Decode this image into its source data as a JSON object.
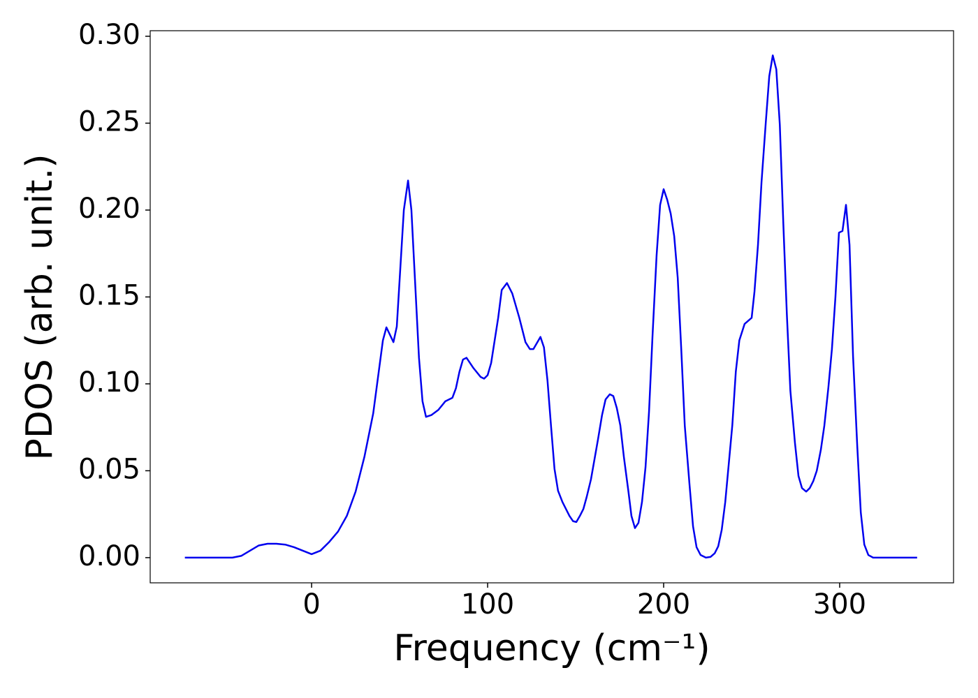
{
  "chart_data": {
    "type": "line",
    "xlabel": "Frequency (cm⁻¹)",
    "ylabel": "PDOS (arb. unit.)",
    "x": [
      -72,
      -45,
      -40,
      -35,
      -30,
      -25,
      -20,
      -15,
      -10,
      -5,
      0,
      5,
      10,
      15,
      20,
      25,
      30,
      35,
      40.5,
      42.5,
      46.5,
      48.4,
      52.4,
      54.8,
      56.7,
      61,
      63,
      65,
      68,
      72,
      76,
      80,
      82,
      84,
      86,
      88,
      92,
      96,
      98,
      100,
      102,
      106,
      108,
      111,
      114,
      118,
      121.5,
      124,
      126,
      130,
      132,
      134,
      136,
      138,
      140,
      142.5,
      146.5,
      148.5,
      150.4,
      152.4,
      154.4,
      156.3,
      158.7,
      162.7,
      165,
      167,
      169.4,
      171.4,
      173.4,
      175.4,
      177.4,
      180,
      181.7,
      183.7,
      185.7,
      187.7,
      189.7,
      191.7,
      193.7,
      196,
      198,
      200,
      202,
      204,
      206,
      208,
      210,
      212,
      214.7,
      216.7,
      218.7,
      221,
      224,
      226.6,
      229,
      231,
      233,
      235,
      237,
      239,
      241,
      243,
      246,
      250,
      251.6,
      253.6,
      255.6,
      258,
      260,
      262,
      264,
      266,
      268,
      270,
      272,
      274.6,
      276.6,
      278.6,
      281,
      283,
      285,
      287,
      289.3,
      291.3,
      293.6,
      295.6,
      297.6,
      299.6,
      301.6,
      303.6,
      305.6,
      307.6,
      310,
      312,
      314,
      316.3,
      319,
      344
    ],
    "series": [
      {
        "color": "#0000ee",
        "values": [
          0,
          0,
          0.001,
          0.004,
          0.007,
          0.008,
          0.008,
          0.0075,
          0.006,
          0.004,
          0.002,
          0.004,
          0.009,
          0.015,
          0.024,
          0.038,
          0.058,
          0.083,
          0.125,
          0.1325,
          0.124,
          0.133,
          0.2,
          0.217,
          0.2,
          0.115,
          0.09,
          0.081,
          0.082,
          0.085,
          0.09,
          0.092,
          0.0975,
          0.107,
          0.114,
          0.115,
          0.109,
          0.104,
          0.103,
          0.105,
          0.112,
          0.138,
          0.154,
          0.158,
          0.152,
          0.138,
          0.124,
          0.12,
          0.12,
          0.127,
          0.121,
          0.102,
          0.076,
          0.051,
          0.0385,
          0.032,
          0.024,
          0.021,
          0.0205,
          0.024,
          0.028,
          0.035,
          0.045,
          0.068,
          0.082,
          0.091,
          0.094,
          0.093,
          0.086,
          0.076,
          0.058,
          0.038,
          0.024,
          0.017,
          0.02,
          0.032,
          0.052,
          0.084,
          0.128,
          0.174,
          0.203,
          0.212,
          0.206,
          0.198,
          0.185,
          0.161,
          0.12,
          0.076,
          0.042,
          0.018,
          0.006,
          0.0015,
          0,
          0.0004,
          0.0025,
          0.0065,
          0.016,
          0.032,
          0.054,
          0.076,
          0.107,
          0.125,
          0.1345,
          0.138,
          0.153,
          0.18,
          0.216,
          0.25,
          0.277,
          0.289,
          0.281,
          0.249,
          0.192,
          0.14,
          0.096,
          0.066,
          0.047,
          0.04,
          0.038,
          0.04,
          0.044,
          0.05,
          0.062,
          0.076,
          0.098,
          0.12,
          0.15,
          0.187,
          0.188,
          0.203,
          0.18,
          0.116,
          0.064,
          0.026,
          0.0075,
          0.0015,
          0,
          0
        ]
      }
    ],
    "xlim": [
      -91.7,
      364.7
    ],
    "ylim": [
      -0.0145,
      0.3032
    ],
    "xticks": [
      0,
      100,
      200,
      300
    ],
    "yticks": [
      {
        "value": 0,
        "label": "0.00"
      },
      {
        "value": 0.05,
        "label": "0.05"
      },
      {
        "value": 0.1,
        "label": "0.10"
      },
      {
        "value": 0.15,
        "label": "0.15"
      },
      {
        "value": 0.2,
        "label": "0.20"
      },
      {
        "value": 0.25,
        "label": "0.25"
      },
      {
        "value": 0.3,
        "label": "0.30"
      }
    ],
    "grid": false
  }
}
